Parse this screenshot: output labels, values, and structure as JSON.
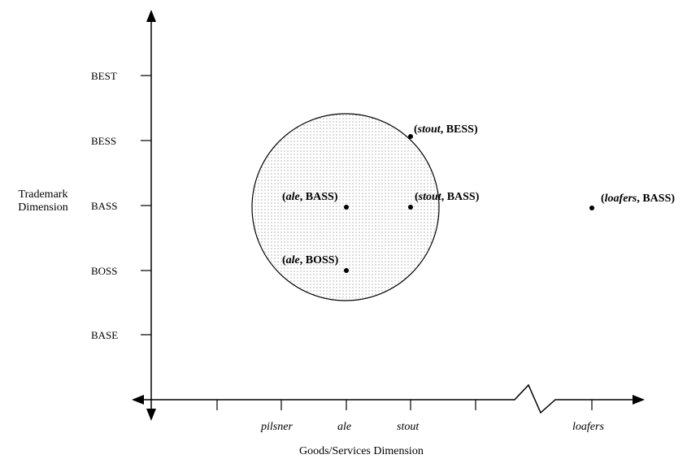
{
  "axes": {
    "y_title_line1": "Trademark",
    "y_title_line2": "Dimension",
    "x_title": "Goods/Services Dimension"
  },
  "y_ticks": [
    "BEST",
    "BESS",
    "BASS",
    "BOSS",
    "BASE"
  ],
  "x_ticks": [
    "pilsner",
    "ale",
    "stout",
    "loafers"
  ],
  "points": [
    {
      "good": "stout",
      "mark": "BESS"
    },
    {
      "good": "ale",
      "mark": "BASS"
    },
    {
      "good": "stout",
      "mark": "BASS"
    },
    {
      "good": "loafers",
      "mark": "BASS"
    },
    {
      "good": "ale",
      "mark": "BOSS"
    }
  ]
}
